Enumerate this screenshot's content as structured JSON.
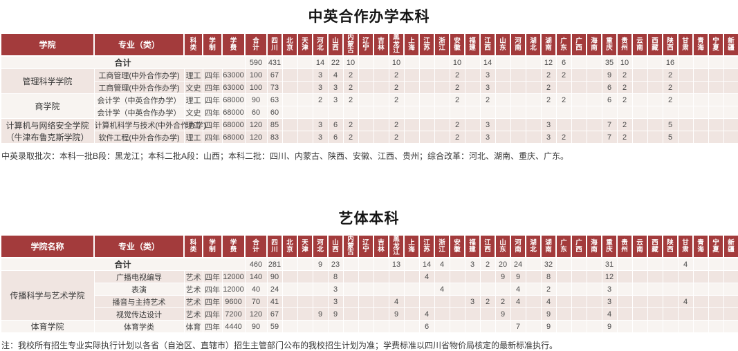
{
  "tables": [
    {
      "title": "中英合作办学本科",
      "headers": {
        "college": "学院",
        "major": "专业（类）",
        "subject": "科类",
        "duration": "学制",
        "tuition": "学费"
      },
      "plan_columns": [
        "合计",
        "四川",
        "北京",
        "天津",
        "河北",
        "山西",
        "内蒙古",
        "辽宁",
        "吉林",
        "黑龙江",
        "上海",
        "江苏",
        "浙江",
        "安徽",
        "福建",
        "江西",
        "山东",
        "河南",
        "湖北",
        "湖南",
        "广东",
        "广西",
        "海南",
        "重庆",
        "贵州",
        "云南",
        "西藏",
        "陕西",
        "甘肃",
        "青海",
        "宁夏",
        "新疆"
      ],
      "total_row": {
        "label": "合计",
        "values": [
          "590",
          "431",
          "",
          "",
          "14",
          "22",
          "10",
          "",
          "",
          "10",
          "",
          "",
          "",
          "10",
          "",
          "14",
          "",
          "",
          "",
          "12",
          "6",
          "",
          "",
          "35",
          "10",
          "",
          "",
          "16",
          "",
          "",
          "",
          ""
        ]
      },
      "groups": [
        {
          "college": "管理科学学院",
          "tint": "pink",
          "rows": [
            {
              "major": "工商管理(中外合作办学)",
              "subject": "理工",
              "duration": "四年",
              "tuition": "63000",
              "tint": "pink",
              "values": [
                "100",
                "67",
                "",
                "",
                "3",
                "4",
                "2",
                "",
                "",
                "2",
                "",
                "",
                "",
                "2",
                "",
                "3",
                "",
                "",
                "",
                "2",
                "2",
                "",
                "",
                "9",
                "2",
                "",
                "",
                "2",
                "",
                "",
                "",
                ""
              ]
            },
            {
              "major": "工商管理(中外合作办学)",
              "subject": "文史",
              "duration": "四年",
              "tuition": "63000",
              "tint": "pink",
              "values": [
                "100",
                "73",
                "",
                "",
                "3",
                "3",
                "2",
                "",
                "",
                "2",
                "",
                "",
                "",
                "2",
                "",
                "3",
                "",
                "",
                "",
                "2",
                "",
                "",
                "",
                "6",
                "2",
                "",
                "",
                "2",
                "",
                "",
                "",
                ""
              ]
            }
          ]
        },
        {
          "college": "商学院",
          "tint": "light",
          "rows": [
            {
              "major": "会计学（中英合作办学）",
              "subject": "理工",
              "duration": "四年",
              "tuition": "68000",
              "tint": "light",
              "values": [
                "90",
                "63",
                "",
                "",
                "2",
                "3",
                "2",
                "",
                "",
                "2",
                "",
                "",
                "",
                "2",
                "",
                "2",
                "",
                "",
                "",
                "2",
                "2",
                "",
                "",
                "6",
                "2",
                "",
                "",
                "2",
                "",
                "",
                "",
                ""
              ]
            },
            {
              "major": "会计学（中英合作办学）",
              "subject": "文史",
              "duration": "四年",
              "tuition": "68000",
              "tint": "light",
              "values": [
                "60",
                "60",
                "",
                "",
                "",
                "",
                "",
                "",
                "",
                "",
                "",
                "",
                "",
                "",
                "",
                "",
                "",
                "",
                "",
                "",
                "",
                "",
                "",
                "",
                "",
                "",
                "",
                "",
                "",
                "",
                "",
                ""
              ]
            }
          ]
        },
        {
          "college": "计算机与网络安全学院（牛津布鲁克斯学院）",
          "tint": "pink",
          "rows": [
            {
              "major": "计算机科学与技术(中外合作办学)",
              "subject": "理工",
              "duration": "四年",
              "tuition": "68000",
              "tint": "pink",
              "values": [
                "120",
                "85",
                "",
                "",
                "3",
                "6",
                "2",
                "",
                "",
                "2",
                "",
                "",
                "",
                "2",
                "",
                "3",
                "",
                "",
                "",
                "3",
                "",
                "",
                "",
                "7",
                "2",
                "",
                "",
                "5",
                "",
                "",
                "",
                ""
              ]
            },
            {
              "major": "软件工程(中外合作办学)",
              "subject": "理工",
              "duration": "四年",
              "tuition": "68000",
              "tint": "pink",
              "values": [
                "120",
                "83",
                "",
                "",
                "3",
                "6",
                "2",
                "",
                "",
                "2",
                "",
                "",
                "",
                "2",
                "",
                "3",
                "",
                "",
                "",
                "3",
                "2",
                "",
                "",
                "7",
                "2",
                "",
                "",
                "5",
                "",
                "",
                "",
                ""
              ]
            }
          ]
        }
      ],
      "note": "中英录取批次：本科一批B段：黑龙江；本科二批A段：山西；本科二批：四川、内蒙古、陕西、安徽、江西、贵州；综合改革：河北、湖南、重庆、广东。"
    },
    {
      "title": "艺体本科",
      "headers": {
        "college": "学院名称",
        "major": "专业（类）",
        "subject": "科类",
        "duration": "学制",
        "tuition": "学费"
      },
      "plan_columns": [
        "合计",
        "四川",
        "北京",
        "天津",
        "河北",
        "山西",
        "内蒙古",
        "辽宁",
        "吉林",
        "黑龙江",
        "上海",
        "江苏",
        "浙江",
        "安徽",
        "福建",
        "江西",
        "山东",
        "河南",
        "湖北",
        "湖南",
        "广东",
        "广西",
        "海南",
        "重庆",
        "贵州",
        "云南",
        "西藏",
        "陕西",
        "甘肃",
        "青海",
        "宁夏",
        "新疆"
      ],
      "total_row": {
        "label": "合计",
        "values": [
          "460",
          "281",
          "",
          "",
          "9",
          "23",
          "",
          "",
          "",
          "13",
          "",
          "14",
          "4",
          "",
          "3",
          "2",
          "20",
          "24",
          "",
          "32",
          "",
          "",
          "",
          "31",
          "",
          "",
          "",
          "",
          "4",
          "",
          "",
          ""
        ]
      },
      "groups": [
        {
          "college": "传播科学与艺术学院",
          "tint": "pink",
          "rows": [
            {
              "major": "广播电视编导",
              "subject": "艺术",
              "duration": "四年",
              "tuition": "12000",
              "tint": "pink",
              "values": [
                "140",
                "90",
                "",
                "",
                "",
                "8",
                "",
                "",
                "",
                "",
                "",
                "4",
                "",
                "",
                "",
                "",
                "9",
                "9",
                "",
                "8",
                "",
                "",
                "",
                "12",
                "",
                "",
                "",
                "",
                "",
                "",
                "",
                ""
              ]
            },
            {
              "major": "表演",
              "subject": "艺术",
              "duration": "四年",
              "tuition": "12000",
              "tint": "light",
              "values": [
                "40",
                "24",
                "",
                "",
                "",
                "3",
                "",
                "",
                "",
                "",
                "",
                "",
                "4",
                "",
                "",
                "",
                "",
                "4",
                "",
                "2",
                "",
                "",
                "",
                "3",
                "",
                "",
                "",
                "",
                "",
                "",
                "",
                ""
              ]
            },
            {
              "major": "播音与主持艺术",
              "subject": "艺术",
              "duration": "四年",
              "tuition": "9600",
              "tint": "pink",
              "values": [
                "70",
                "41",
                "",
                "",
                "",
                "3",
                "",
                "",
                "",
                "4",
                "",
                "",
                "",
                "",
                "3",
                "2",
                "2",
                "4",
                "",
                "4",
                "",
                "",
                "",
                "3",
                "",
                "",
                "",
                "",
                "4",
                "",
                "",
                ""
              ]
            },
            {
              "major": "视觉传达设计",
              "subject": "艺术",
              "duration": "四年",
              "tuition": "7200",
              "tint": "pink",
              "values": [
                "120",
                "67",
                "",
                "",
                "9",
                "9",
                "",
                "",
                "",
                "9",
                "",
                "4",
                "",
                "",
                "",
                "",
                "9",
                "",
                "",
                "9",
                "",
                "",
                "",
                "4",
                "",
                "",
                "",
                "",
                "",
                "",
                "",
                ""
              ]
            }
          ]
        },
        {
          "college": "体育学院",
          "tint": "light",
          "rows": [
            {
              "major": "体育学类",
              "subject": "体育",
              "duration": "四年",
              "tuition": "4440",
              "tint": "light",
              "values": [
                "90",
                "59",
                "",
                "",
                "",
                "",
                "",
                "",
                "",
                "",
                "",
                "6",
                "",
                "",
                "",
                "",
                "",
                "7",
                "",
                "9",
                "",
                "",
                "",
                "9",
                "",
                "",
                "",
                "",
                "",
                "",
                "",
                ""
              ]
            }
          ]
        }
      ],
      "note": "注：我校所有招生专业实际执行计划以各省（自治区、直辖市）招生主管部门公布的我校招生计划为准；学费标准以四川省物价局核定的最新标准执行。"
    }
  ],
  "theme": {
    "header_red": "#A33B3C",
    "row_pink": "#F0E5E1",
    "row_light": "#F8F4F1"
  }
}
